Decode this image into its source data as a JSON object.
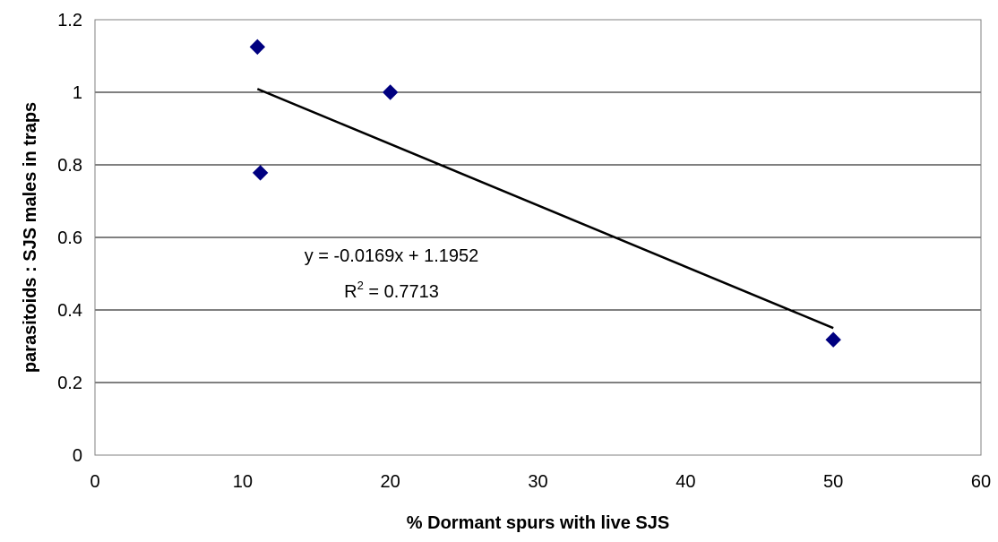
{
  "chart_data": {
    "type": "scatter",
    "xlabel": "% Dormant spurs with live SJS",
    "ylabel": "parasitoids : SJS males in traps",
    "xlim": [
      0,
      60
    ],
    "ylim": [
      0,
      1.2
    ],
    "xticks": [
      0,
      10,
      20,
      30,
      40,
      50,
      60
    ],
    "yticks": [
      0,
      0.2,
      0.4,
      0.6,
      0.8,
      1.0,
      1.2
    ],
    "xtick_labels": [
      "0",
      "10",
      "20",
      "30",
      "40",
      "50",
      "60"
    ],
    "ytick_labels": [
      "0",
      "0.2",
      "0.4",
      "0.6",
      "0.8",
      "1",
      "1.2"
    ],
    "grid": {
      "horizontal": true,
      "vertical": false
    },
    "series": [
      {
        "marker": "diamond",
        "color": "#000080",
        "points": [
          {
            "x": 11.0,
            "y": 1.125
          },
          {
            "x": 11.2,
            "y": 0.778
          },
          {
            "x": 20.0,
            "y": 1.0
          },
          {
            "x": 50.0,
            "y": 0.318
          }
        ]
      }
    ],
    "trendline": {
      "type": "linear",
      "slope": -0.0169,
      "intercept": 1.1952,
      "x_range": [
        11.0,
        50.0
      ],
      "color": "#000000"
    },
    "annotation": {
      "equation": "y = -0.0169x + 1.1952",
      "r2_label": "R",
      "r2_sup": "2",
      "r2_value": " = 0.7713"
    }
  }
}
